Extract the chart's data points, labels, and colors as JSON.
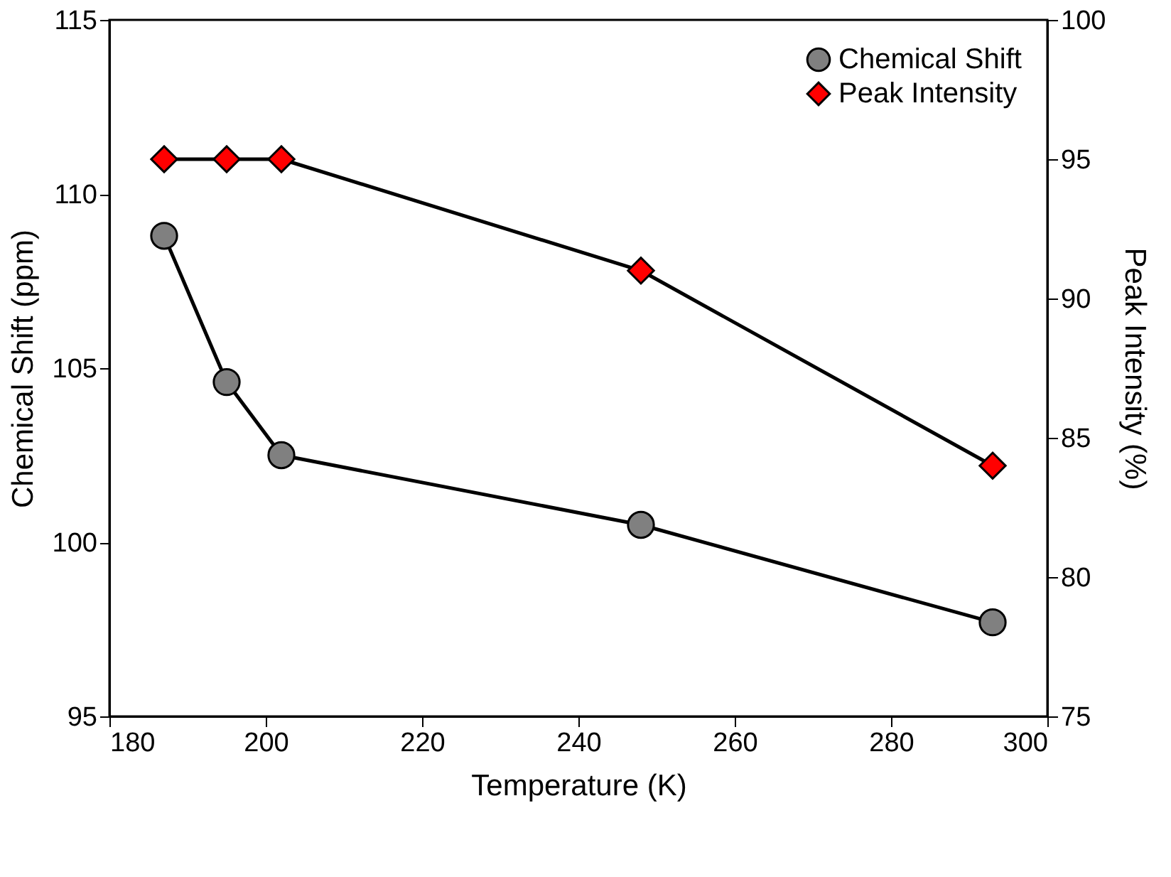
{
  "chart_data": {
    "type": "line",
    "xlabel": "Temperature (K)",
    "ylabel": "Chemical Shift (ppm)",
    "y2label": "Peak Intensity (%)",
    "x": [
      187,
      195,
      202,
      248,
      293
    ],
    "series": [
      {
        "name": "Chemical Shift",
        "color": "#808080",
        "marker": "circle",
        "values": [
          108.8,
          104.6,
          102.5,
          100.5,
          97.7
        ]
      },
      {
        "name": "Peak Intensity",
        "color": "#ff0000",
        "marker": "diamond",
        "axis": "y2",
        "values": [
          95,
          95,
          95,
          91,
          84
        ]
      }
    ],
    "xlim": [
      180,
      300
    ],
    "xticks": [
      180,
      200,
      220,
      240,
      260,
      280,
      300
    ],
    "ylim": [
      95,
      115
    ],
    "yticks": [
      95,
      100,
      105,
      110,
      115
    ],
    "y2lim": [
      75,
      100
    ],
    "y2ticks": [
      75,
      80,
      85,
      90,
      95,
      100
    ],
    "grid": false,
    "legend": "top right"
  }
}
